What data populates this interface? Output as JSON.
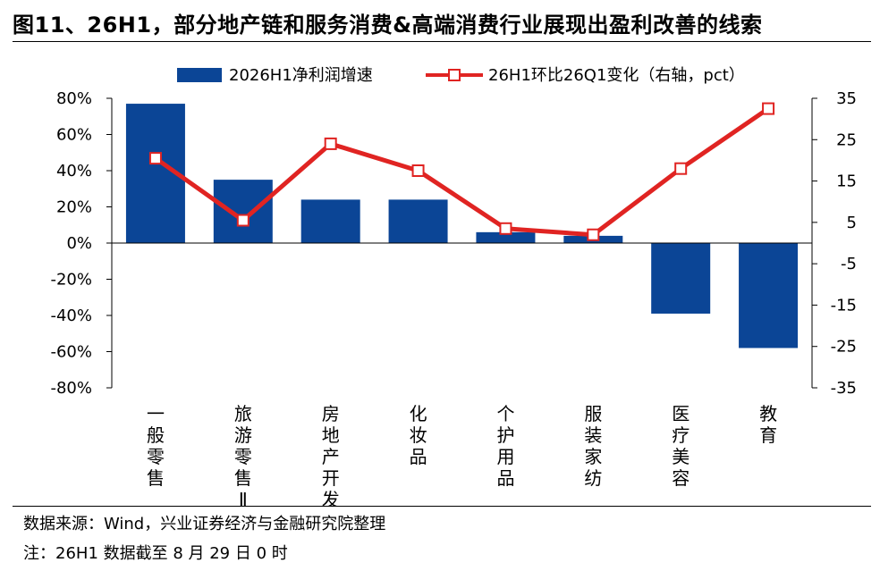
{
  "title": "图11、26H1，部分地产链和服务消费&高端消费行业展现出盈利改善的线索",
  "source": "数据来源：Wind，兴业证券经济与金融研究院整理",
  "note": "注：26H1 数据截至 8 月 29 日 0 时",
  "chart_data": {
    "type": "bar",
    "categories": [
      "一般零售",
      "旅游零售Ⅱ",
      "房地产开发",
      "化妆品",
      "个护用品",
      "服装家纺",
      "医疗美容",
      "教育"
    ],
    "series": [
      {
        "name": "2026H1净利润增速",
        "type": "bar",
        "axis": "left",
        "color": "#0b4596",
        "values": [
          77,
          35,
          24,
          24,
          6,
          4,
          -39,
          -58
        ]
      },
      {
        "name": "26H1环比26Q1变化（右轴，pct）",
        "type": "line",
        "axis": "right",
        "color": "#e02422",
        "values": [
          20.5,
          5.5,
          24,
          17.5,
          3.5,
          2,
          18,
          32.5
        ]
      }
    ],
    "y_left": {
      "ylim": [
        -80,
        80
      ],
      "ticks": [
        80,
        60,
        40,
        20,
        0,
        -20,
        -40,
        -60,
        -80
      ],
      "tick_labels": [
        "80%",
        "60%",
        "40%",
        "20%",
        "0%",
        "-20%",
        "-40%",
        "-60%",
        "-80%"
      ]
    },
    "y_right": {
      "ylim": [
        -35,
        35
      ],
      "ticks": [
        35,
        25,
        15,
        5,
        -5,
        -15,
        -25,
        -35
      ],
      "tick_labels": [
        "35",
        "25",
        "15",
        "5",
        "-5",
        "-15",
        "-25",
        "-35"
      ]
    },
    "legend": "top",
    "grid": false
  }
}
